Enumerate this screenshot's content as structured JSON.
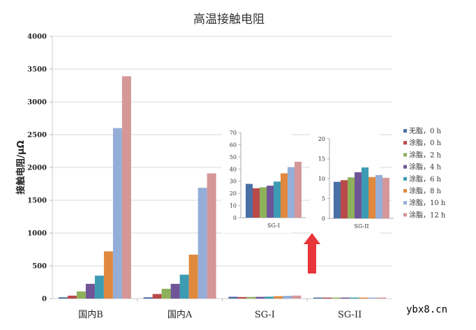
{
  "chart_data": {
    "type": "bar",
    "title": "高温接触电阻",
    "xlabel": "",
    "ylabel": "接触电阻/μΩ",
    "ylim": [
      0,
      4000
    ],
    "yticks": [
      0,
      500,
      1000,
      1500,
      2000,
      2500,
      3000,
      3500,
      4000
    ],
    "grid": true,
    "legend_position": "right",
    "categories": [
      "国内B",
      "国内A",
      "SG-I",
      "SG-II"
    ],
    "series": [
      {
        "name": "无脂，0 h",
        "color": "#4a6fa5",
        "values": [
          20,
          20,
          27.8,
          9.2
        ]
      },
      {
        "name": "涂脂，0 h",
        "color": "#b84a4a",
        "values": [
          45,
          70,
          24.2,
          9.6
        ]
      },
      {
        "name": "涂脂，2 h",
        "color": "#8fb05a",
        "values": [
          110,
          150,
          25,
          10.3
        ]
      },
      {
        "name": "涂脂，4 h",
        "color": "#6f5597",
        "values": [
          225,
          225,
          26.3,
          11.6
        ]
      },
      {
        "name": "涂脂，6 h",
        "color": "#3d9bb3",
        "values": [
          350,
          365,
          29.7,
          12.8
        ]
      },
      {
        "name": "涂脂，8 h",
        "color": "#e0893e",
        "values": [
          720,
          670,
          36.5,
          10.4
        ]
      },
      {
        "name": "涂脂，10 h",
        "color": "#94aed8",
        "values": [
          2600,
          1690,
          41.6,
          10.9
        ]
      },
      {
        "name": "涂脂，12 h",
        "color": "#d59797",
        "values": [
          3390,
          1910,
          46,
          10.2
        ]
      }
    ],
    "insets": [
      {
        "label": "SG-I",
        "ylim": [
          0,
          70
        ],
        "yticks": [
          0,
          10,
          20,
          30,
          40,
          50,
          60,
          70
        ],
        "values": [
          27.8,
          24.2,
          25,
          26.3,
          29.7,
          36.5,
          41.6,
          46
        ]
      },
      {
        "label": "SG-II",
        "ylim": [
          0,
          20
        ],
        "yticks": [
          0,
          5,
          10,
          15,
          20
        ],
        "values": [
          9.2,
          9.6,
          10.3,
          11.6,
          12.8,
          10.4,
          10.9,
          10.2
        ]
      }
    ],
    "annotations": [
      "red upward arrow pointing from SG-I/SG-II bars to insets"
    ]
  },
  "watermark": "ybx8.cn"
}
